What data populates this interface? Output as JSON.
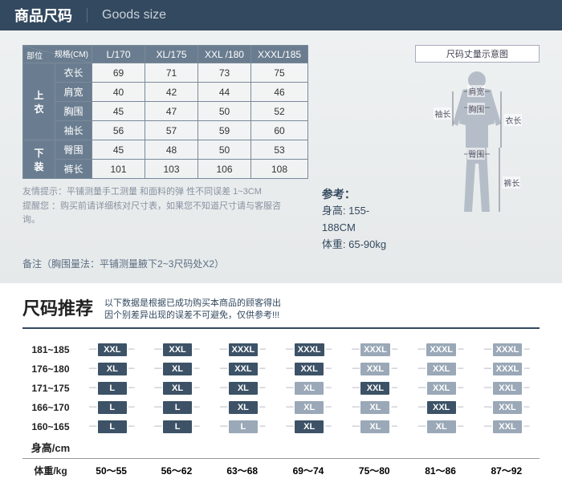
{
  "header": {
    "cn": "商品尺码",
    "en": "Goods size"
  },
  "sizeTable": {
    "corner": {
      "part": "部位",
      "spec": "规格(CM)"
    },
    "cols": [
      "L/170",
      "XL/175",
      "XXL /180",
      "XXXL/185"
    ],
    "groups": [
      {
        "name": "上衣",
        "rows": [
          {
            "label": "衣长",
            "vals": [
              "69",
              "71",
              "73",
              "75"
            ]
          },
          {
            "label": "肩宽",
            "vals": [
              "40",
              "42",
              "44",
              "46"
            ]
          },
          {
            "label": "胸围",
            "vals": [
              "45",
              "47",
              "50",
              "52"
            ]
          },
          {
            "label": "袖长",
            "vals": [
              "56",
              "57",
              "59",
              "60"
            ]
          }
        ]
      },
      {
        "name": "下装",
        "rows": [
          {
            "label": "臀围",
            "vals": [
              "45",
              "48",
              "50",
              "53"
            ]
          },
          {
            "label": "裤长",
            "vals": [
              "101",
              "103",
              "106",
              "108"
            ]
          }
        ]
      }
    ]
  },
  "diagram": {
    "title": "尺码丈量示意图",
    "labels": {
      "shoulder": "肩宽",
      "chest": "胸围",
      "sleeve": "袖长",
      "length": "衣长",
      "hip": "臀围",
      "pant": "裤长"
    }
  },
  "notes": {
    "tip1": "友情提示：平铺测量手工测量 和面料的弹 性不同误差 1~3CM",
    "tip2": "提醒您 ：购买前请详细核对尺寸表，如果您不知道尺寸请与客服咨询。",
    "memoLabel": "备注",
    "memo": "（胸围量法：平铺测量腋下2~3尺码处X2）",
    "refTitle": "参考：",
    "heightLabel": "身高:",
    "heightVal": "155-188CM",
    "weightLabel": "体重:",
    "weightVal": "65-90kg"
  },
  "rec": {
    "title": "尺码推荐",
    "sub1": "以下数据是根据已成功购买本商品的顾客得出",
    "sub2": "因个别差异出现的误差不可避免，仅供参考!!!",
    "heightAxis": "身高/cm",
    "weightAxis": "体重/kg",
    "heights": [
      "181~185",
      "176~180",
      "171~175",
      "166~170",
      "160~165"
    ],
    "weights": [
      "50～55",
      "56～62",
      "63～68",
      "69～74",
      "75～80",
      "81～86",
      "87～92"
    ],
    "grid": [
      [
        [
          "XXL",
          "d"
        ],
        [
          "XXL",
          "d"
        ],
        [
          "XXXL",
          "d"
        ],
        [
          "XXXL",
          "d"
        ],
        [
          "XXXL",
          "l"
        ],
        [
          "XXXL",
          "l"
        ],
        [
          "XXXL",
          "l"
        ]
      ],
      [
        [
          "XL",
          "d"
        ],
        [
          "XL",
          "d"
        ],
        [
          "XXL",
          "d"
        ],
        [
          "XXL",
          "d"
        ],
        [
          "XXL",
          "l"
        ],
        [
          "XXL",
          "l"
        ],
        [
          "XXXL",
          "l"
        ]
      ],
      [
        [
          "L",
          "d"
        ],
        [
          "XL",
          "d"
        ],
        [
          "XL",
          "d"
        ],
        [
          "XL",
          "l"
        ],
        [
          "XXL",
          "d"
        ],
        [
          "XXL",
          "l"
        ],
        [
          "XXL",
          "l"
        ]
      ],
      [
        [
          "L",
          "d"
        ],
        [
          "L",
          "d"
        ],
        [
          "XL",
          "d"
        ],
        [
          "XL",
          "l"
        ],
        [
          "XL",
          "l"
        ],
        [
          "XXL",
          "d"
        ],
        [
          "XXL",
          "l"
        ]
      ],
      [
        [
          "L",
          "d"
        ],
        [
          "L",
          "d"
        ],
        [
          "L",
          "l"
        ],
        [
          "XL",
          "d"
        ],
        [
          "XL",
          "l"
        ],
        [
          "XL",
          "l"
        ],
        [
          "XXL",
          "l"
        ]
      ]
    ]
  },
  "colors": {
    "dark": "#3d5266",
    "light": "#9aa8b7"
  }
}
